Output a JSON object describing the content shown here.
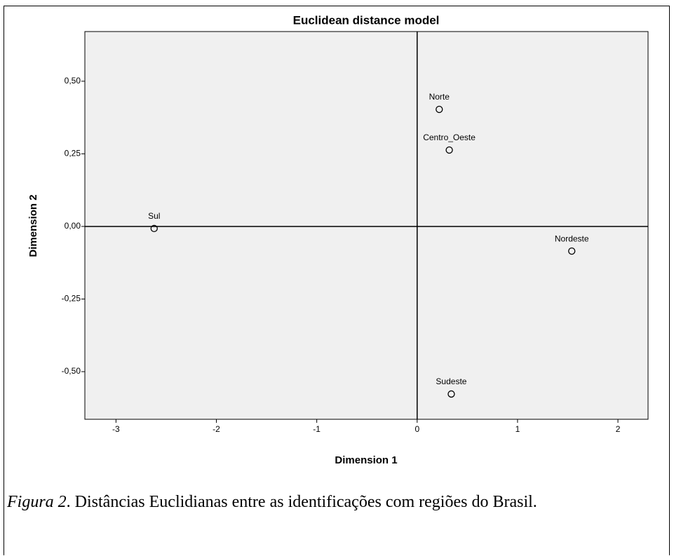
{
  "chart_data": {
    "type": "scatter",
    "title": "Euclidean distance model",
    "xlabel": "Dimension 1",
    "ylabel": "Dimension 2",
    "point_labels": [
      "Norte",
      "Centro_Oeste",
      "Sul",
      "Nordeste",
      "Sudeste"
    ],
    "x": [
      0.22,
      0.32,
      -2.62,
      1.54,
      0.34
    ],
    "values": [
      0.403,
      0.263,
      -0.007,
      -0.085,
      -0.577
    ],
    "xlim": [
      -3.31,
      2.3
    ],
    "ylim": [
      -0.664,
      0.671
    ],
    "xticks": [
      -3,
      -2,
      -1,
      0,
      1,
      2
    ],
    "yticks": [
      {
        "value": 0.5,
        "label": "0,50"
      },
      {
        "value": 0.25,
        "label": "0,25"
      },
      {
        "value": 0,
        "label": "0,00"
      },
      {
        "value": -0.25,
        "label": "-0,25"
      },
      {
        "value": -0.5,
        "label": "-0,50"
      }
    ],
    "plot_background": "#f0f0f0",
    "color": "#000000"
  },
  "caption": {
    "label": "Figura 2",
    "text": ". Distâncias Euclidianas entre as identificações com regiões do Brasil."
  }
}
